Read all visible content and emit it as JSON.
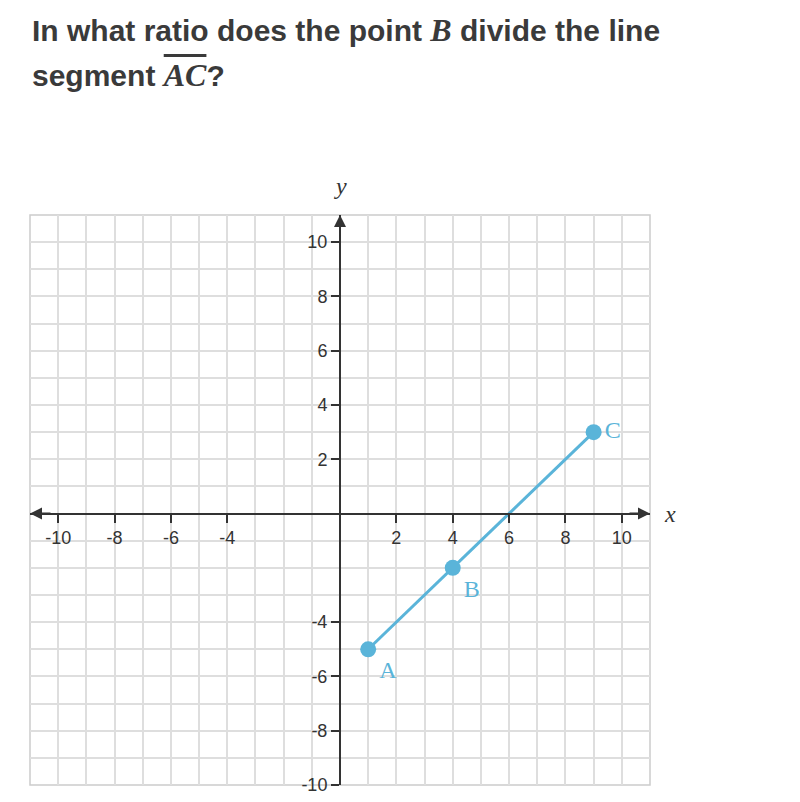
{
  "chart_data": {
    "type": "scatter",
    "title": "In what ratio does the point B divide the line segment AC?",
    "xlabel": "x",
    "ylabel": "y",
    "x": [
      1,
      4,
      9
    ],
    "values": [
      -5,
      -2,
      3
    ],
    "labels": [
      "A",
      "B",
      "C"
    ],
    "color": "#5ab4d9",
    "marker": "circle",
    "line_style": "solid",
    "xlim": [
      -11,
      11
    ],
    "xticks": [
      -10,
      -8,
      -6,
      -4,
      2,
      4,
      6,
      8,
      10
    ],
    "ylim": [
      -10,
      11
    ],
    "yticks": [
      -10,
      -8,
      -6,
      -4,
      2,
      4,
      6,
      8,
      10
    ],
    "grid": true
  }
}
